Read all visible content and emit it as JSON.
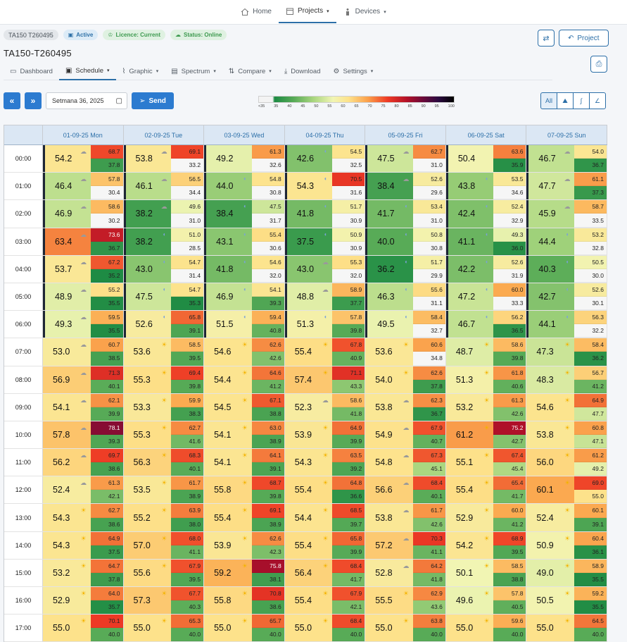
{
  "topnav": {
    "home": "Home",
    "projects": "Projects",
    "devices": "Devices"
  },
  "badges": {
    "id": "TA150 T260495",
    "active": "Active",
    "licence": "Licence: Current",
    "status": "Status: Online"
  },
  "page_title": "TA150-T260495",
  "buttons": {
    "project": "Project",
    "send": "Send"
  },
  "tabs": [
    "Dashboard",
    "Schedule",
    "Graphic",
    "Spectrum",
    "Compare",
    "Download",
    "Settings"
  ],
  "week": "Setmana 36, 2025",
  "legend": [
    "<35",
    "35",
    "40",
    "45",
    "50",
    "55",
    "60",
    "65",
    "70",
    "75",
    "80",
    "85",
    "90",
    "95",
    "100"
  ],
  "view_all": "All",
  "days": [
    "01-09-25 Mon",
    "02-09-25 Tue",
    "03-09-25 Wed",
    "04-09-25 Thu",
    "05-09-25 Fri",
    "06-09-25 Sat",
    "07-09-25 Sun"
  ],
  "hours": [
    "00:00",
    "01:00",
    "02:00",
    "03:00",
    "04:00",
    "05:00",
    "06:00",
    "07:00",
    "08:00",
    "09:00",
    "10:00",
    "11:00",
    "12:00",
    "13:00",
    "14:00",
    "15:00",
    "16:00",
    "17:00"
  ],
  "cells": [
    [
      [
        54.2,
        68.7,
        37.8,
        "cloud"
      ],
      [
        53.8,
        69.1,
        33.2,
        "cloud"
      ],
      [
        49.2,
        61.3,
        32.6,
        ""
      ],
      [
        42.6,
        54.5,
        32.5,
        "moon"
      ],
      [
        47.5,
        62.7,
        31.0,
        "cloud"
      ],
      [
        50.4,
        63.6,
        35.9,
        ""
      ],
      [
        46.7,
        54.0,
        36.7,
        "cloud"
      ]
    ],
    [
      [
        46.4,
        57.8,
        30.4,
        "cloud"
      ],
      [
        46.1,
        56.5,
        34.4,
        "cloud"
      ],
      [
        44.0,
        54.8,
        30.8,
        "moon"
      ],
      [
        54.3,
        70.5,
        31.6,
        "moon"
      ],
      [
        38.4,
        52.6,
        29.6,
        "cloud"
      ],
      [
        43.8,
        53.5,
        34.6,
        "moon"
      ],
      [
        47.7,
        61.1,
        37.3,
        "cloud"
      ]
    ],
    [
      [
        46.9,
        58.6,
        30.2,
        "cloud"
      ],
      [
        38.2,
        49.6,
        31.0,
        "cloud"
      ],
      [
        38.4,
        47.5,
        31.7,
        "moon"
      ],
      [
        41.8,
        51.7,
        30.9,
        "moon"
      ],
      [
        41.7,
        53.4,
        31.0,
        "moon"
      ],
      [
        42.4,
        52.4,
        32.9,
        "moon"
      ],
      [
        45.9,
        58.7,
        33.5,
        "cloud"
      ]
    ],
    [
      [
        63.4,
        73.6,
        36.7,
        "cloud"
      ],
      [
        38.2,
        51.0,
        28.5,
        "moon"
      ],
      [
        43.1,
        55.4,
        30.6,
        "moon"
      ],
      [
        37.5,
        50.9,
        30.9,
        "moon"
      ],
      [
        40.0,
        50.8,
        30.8,
        "moon"
      ],
      [
        41.1,
        49.3,
        36.0,
        "moon"
      ],
      [
        44.4,
        53.2,
        32.8,
        "moon"
      ]
    ],
    [
      [
        53.7,
        67.2,
        35.2,
        "cloud"
      ],
      [
        43.0,
        54.7,
        31.4,
        "moon"
      ],
      [
        41.8,
        54.6,
        32.0,
        "moon"
      ],
      [
        43.0,
        55.3,
        32.0,
        "cloud"
      ],
      [
        36.2,
        51.7,
        29.9,
        "moon"
      ],
      [
        42.2,
        52.6,
        31.9,
        "moon"
      ],
      [
        40.3,
        50.5,
        30.0,
        "moon"
      ]
    ],
    [
      [
        48.9,
        55.2,
        35.5,
        "cloud"
      ],
      [
        47.5,
        54.7,
        35.3,
        "moon"
      ],
      [
        46.9,
        54.1,
        39.3,
        "moon"
      ],
      [
        48.8,
        58.9,
        37.7,
        "cloud"
      ],
      [
        46.3,
        55.6,
        31.1,
        "moon"
      ],
      [
        47.2,
        60.0,
        33.3,
        "moon"
      ],
      [
        42.7,
        52.6,
        30.1,
        "moon"
      ]
    ],
    [
      [
        49.3,
        59.5,
        35.5,
        "cloud"
      ],
      [
        52.6,
        65.8,
        39.1,
        "moon"
      ],
      [
        51.5,
        59.4,
        40.8,
        "moon"
      ],
      [
        51.3,
        57.8,
        39.8,
        "moon"
      ],
      [
        49.5,
        58.4,
        32.7,
        "moon"
      ],
      [
        46.7,
        56.2,
        36.5,
        "moon"
      ],
      [
        44.1,
        56.3,
        32.2,
        "moon"
      ]
    ],
    [
      [
        53.0,
        60.7,
        38.5,
        "cloud"
      ],
      [
        53.6,
        58.5,
        39.5,
        "sun"
      ],
      [
        54.6,
        62.6,
        42.6,
        "sun"
      ],
      [
        55.4,
        67.8,
        40.9,
        "sun"
      ],
      [
        53.6,
        60.6,
        34.8,
        "sun"
      ],
      [
        48.7,
        58.6,
        39.8,
        "sun"
      ],
      [
        47.3,
        58.4,
        36.2,
        "sun"
      ]
    ],
    [
      [
        56.9,
        71.3,
        40.1,
        "cloud"
      ],
      [
        55.3,
        69.4,
        39.8,
        "sun"
      ],
      [
        54.4,
        64.6,
        41.2,
        "sun"
      ],
      [
        57.4,
        71.1,
        43.3,
        "sun"
      ],
      [
        54.0,
        62.6,
        37.8,
        "sun"
      ],
      [
        51.3,
        61.8,
        40.6,
        "sun"
      ],
      [
        48.3,
        56.7,
        41.2,
        "sun"
      ]
    ],
    [
      [
        54.1,
        62.1,
        39.9,
        "cloud"
      ],
      [
        53.3,
        59.9,
        38.3,
        "sun"
      ],
      [
        54.5,
        67.1,
        38.8,
        "sun"
      ],
      [
        52.3,
        58.6,
        41.8,
        "cloud"
      ],
      [
        53.8,
        62.3,
        36.7,
        "cloud"
      ],
      [
        53.2,
        61.3,
        42.6,
        "sun"
      ],
      [
        54.6,
        64.9,
        47.7,
        "sun"
      ]
    ],
    [
      [
        57.8,
        78.1,
        39.3,
        "cloud"
      ],
      [
        55.3,
        62.7,
        41.6,
        "sun"
      ],
      [
        54.1,
        63.0,
        38.9,
        "sun"
      ],
      [
        53.9,
        64.9,
        39.9,
        "sun"
      ],
      [
        54.9,
        67.9,
        40.7,
        "cloud"
      ],
      [
        61.2,
        75.2,
        42.7,
        "sun"
      ],
      [
        53.8,
        60.8,
        47.1,
        "sun"
      ]
    ],
    [
      [
        56.2,
        69.7,
        38.6,
        "cloud"
      ],
      [
        56.3,
        68.3,
        40.1,
        "sun"
      ],
      [
        54.1,
        64.1,
        39.1,
        "sun"
      ],
      [
        54.3,
        63.5,
        39.2,
        "sun"
      ],
      [
        54.8,
        67.3,
        45.1,
        "cloud"
      ],
      [
        55.1,
        67.4,
        45.4,
        "sun"
      ],
      [
        56.0,
        61.2,
        49.2,
        "sun"
      ]
    ],
    [
      [
        52.4,
        61.3,
        42.1,
        "cloud"
      ],
      [
        53.5,
        61.7,
        38.9,
        "sun"
      ],
      [
        55.8,
        68.7,
        39.8,
        "sun"
      ],
      [
        55.4,
        64.8,
        36.6,
        "sun"
      ],
      [
        56.6,
        68.4,
        40.1,
        "cloud"
      ],
      [
        55.4,
        65.4,
        41.7,
        "sun"
      ],
      [
        60.1,
        69.0,
        55.0,
        "sun"
      ]
    ],
    [
      [
        54.3,
        62.7,
        38.6,
        "sun"
      ],
      [
        55.2,
        63.9,
        38.0,
        "sun"
      ],
      [
        55.4,
        69.1,
        38.9,
        "sun"
      ],
      [
        54.4,
        68.5,
        39.7,
        "sun"
      ],
      [
        53.8,
        61.7,
        42.6,
        "cloud"
      ],
      [
        52.9,
        60.0,
        41.2,
        "sun"
      ],
      [
        52.4,
        60.1,
        39.1,
        "sun"
      ]
    ],
    [
      [
        54.3,
        64.9,
        37.5,
        "sun"
      ],
      [
        57.0,
        68.0,
        41.1,
        "sun"
      ],
      [
        53.9,
        62.6,
        42.3,
        "sun"
      ],
      [
        55.4,
        65.8,
        39.9,
        "sun"
      ],
      [
        57.2,
        70.3,
        41.1,
        "cloud"
      ],
      [
        54.2,
        68.9,
        39.5,
        "sun"
      ],
      [
        50.9,
        60.4,
        36.1,
        "sun"
      ]
    ],
    [
      [
        53.2,
        64.7,
        37.8,
        "sun"
      ],
      [
        55.6,
        67.9,
        39.5,
        "sun"
      ],
      [
        59.2,
        75.8,
        38.1,
        "sun"
      ],
      [
        56.4,
        68.4,
        41.7,
        "sun"
      ],
      [
        52.8,
        64.2,
        41.8,
        "cloud"
      ],
      [
        50.1,
        58.5,
        38.8,
        "sun"
      ],
      [
        49.0,
        58.9,
        35.5,
        "sun"
      ]
    ],
    [
      [
        52.9,
        64.0,
        35.7,
        "sun"
      ],
      [
        57.3,
        67.7,
        40.3,
        "sun"
      ],
      [
        55.8,
        70.8,
        38.6,
        "sun"
      ],
      [
        55.4,
        67.9,
        42.1,
        "sun"
      ],
      [
        55.5,
        62.9,
        43.6,
        "sun"
      ],
      [
        49.6,
        57.8,
        40.5,
        "sun"
      ],
      [
        50.5,
        59.2,
        35.5,
        "sun"
      ]
    ],
    [
      [
        55.0,
        70.1,
        40.0,
        "sun"
      ],
      [
        55.0,
        65.3,
        40.0,
        "sun"
      ],
      [
        55.0,
        65.7,
        40.0,
        "sun"
      ],
      [
        55.0,
        68.4,
        40.0,
        "sun"
      ],
      [
        55.0,
        63.8,
        40.0,
        "sun"
      ],
      [
        55.0,
        59.6,
        40.0,
        "sun"
      ],
      [
        55.0,
        64.5,
        40.0,
        "sun"
      ]
    ]
  ]
}
